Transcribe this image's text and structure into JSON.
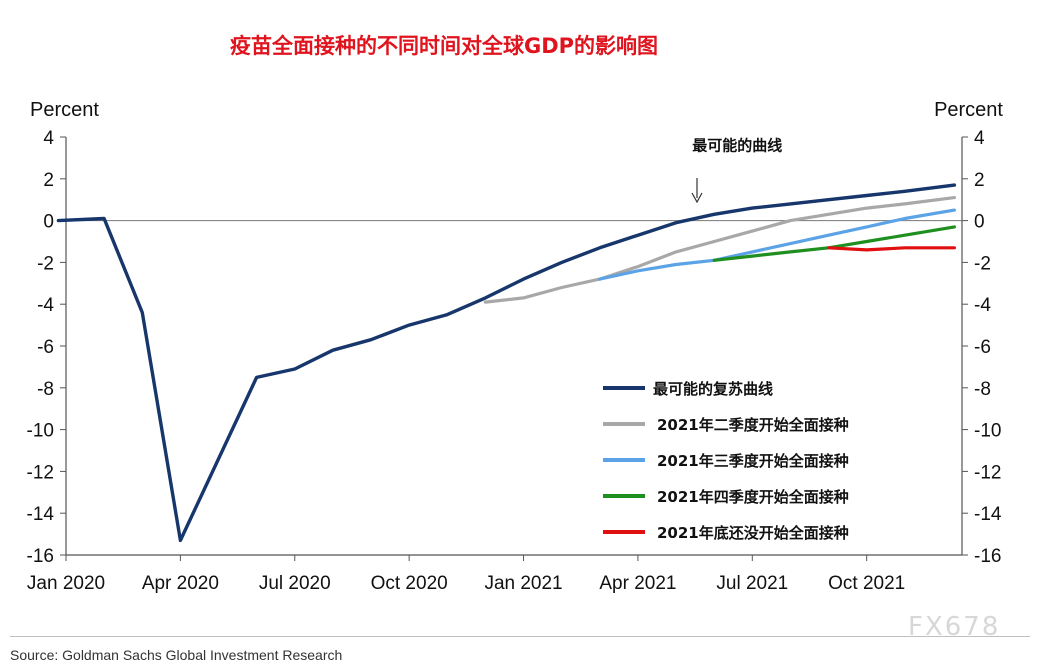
{
  "title": "疫苗全面接种的不同时间对全球GDP的影响图",
  "source": "Source: Goldman Sachs Global Investment Research",
  "watermark": "FX678",
  "chart_data": {
    "type": "line",
    "ylabel_left": "Percent",
    "ylabel_right": "Percent",
    "ylim": [
      -16,
      4
    ],
    "yticks": [
      4,
      2,
      0,
      -2,
      -4,
      -6,
      -8,
      -10,
      -12,
      -14,
      -16
    ],
    "xlim": [
      0,
      23.5
    ],
    "xticks": [
      {
        "label": "Jan 2020",
        "x": 0
      },
      {
        "label": "Apr 2020",
        "x": 3
      },
      {
        "label": "Jul 2020",
        "x": 6
      },
      {
        "label": "Oct 2020",
        "x": 9
      },
      {
        "label": "Jan 2021",
        "x": 12
      },
      {
        "label": "Apr 2021",
        "x": 15
      },
      {
        "label": "Jul 2021",
        "x": 18
      },
      {
        "label": "Oct 2021",
        "x": 21
      }
    ],
    "zero_line": true,
    "annotation": {
      "text": "最可能的曲线",
      "x": 18.0,
      "y": 2.4
    },
    "series": [
      {
        "name": "最可能的复苏曲线",
        "color": "#17366b",
        "x": [
          -0.2,
          1,
          2,
          3,
          5,
          6,
          7,
          8,
          9,
          10,
          11,
          12,
          13,
          14,
          15,
          16,
          17,
          18,
          19,
          20,
          21,
          22,
          23.3
        ],
        "y": [
          0,
          0.1,
          -4.4,
          -15.3,
          -7.5,
          -7.1,
          -6.2,
          -5.7,
          -5.0,
          -4.5,
          -3.7,
          -2.8,
          -2.0,
          -1.3,
          -0.7,
          -0.1,
          0.3,
          0.6,
          0.8,
          1.0,
          1.2,
          1.4,
          1.7
        ]
      },
      {
        "name": "2021年二季度开始全面接种",
        "color": "#a8a8a8",
        "x": [
          11,
          12,
          13,
          14,
          15,
          16,
          17,
          18,
          19,
          20,
          21,
          22,
          23.3
        ],
        "y": [
          -3.9,
          -3.7,
          -3.2,
          -2.8,
          -2.2,
          -1.5,
          -1.0,
          -0.5,
          0.0,
          0.3,
          0.6,
          0.8,
          1.1
        ]
      },
      {
        "name": "2021年三季度开始全面接种",
        "color": "#5ba3e6",
        "x": [
          14,
          15,
          16,
          17,
          18,
          19,
          20,
          21,
          22,
          23.3
        ],
        "y": [
          -2.8,
          -2.4,
          -2.1,
          -1.9,
          -1.5,
          -1.1,
          -0.7,
          -0.3,
          0.1,
          0.5
        ]
      },
      {
        "name": "2021年四季度开始全面接种",
        "color": "#1f8f1f",
        "x": [
          17,
          18,
          19,
          20,
          21,
          22,
          23.3
        ],
        "y": [
          -1.9,
          -1.7,
          -1.5,
          -1.3,
          -1.0,
          -0.7,
          -0.3
        ]
      },
      {
        "name": "2021年底还没开始全面接种",
        "color": "#e01010",
        "x": [
          20,
          21,
          22,
          23.3
        ],
        "y": [
          -1.3,
          -1.4,
          -1.3,
          -1.3
        ]
      }
    ],
    "legend_position": "bottom-right"
  }
}
